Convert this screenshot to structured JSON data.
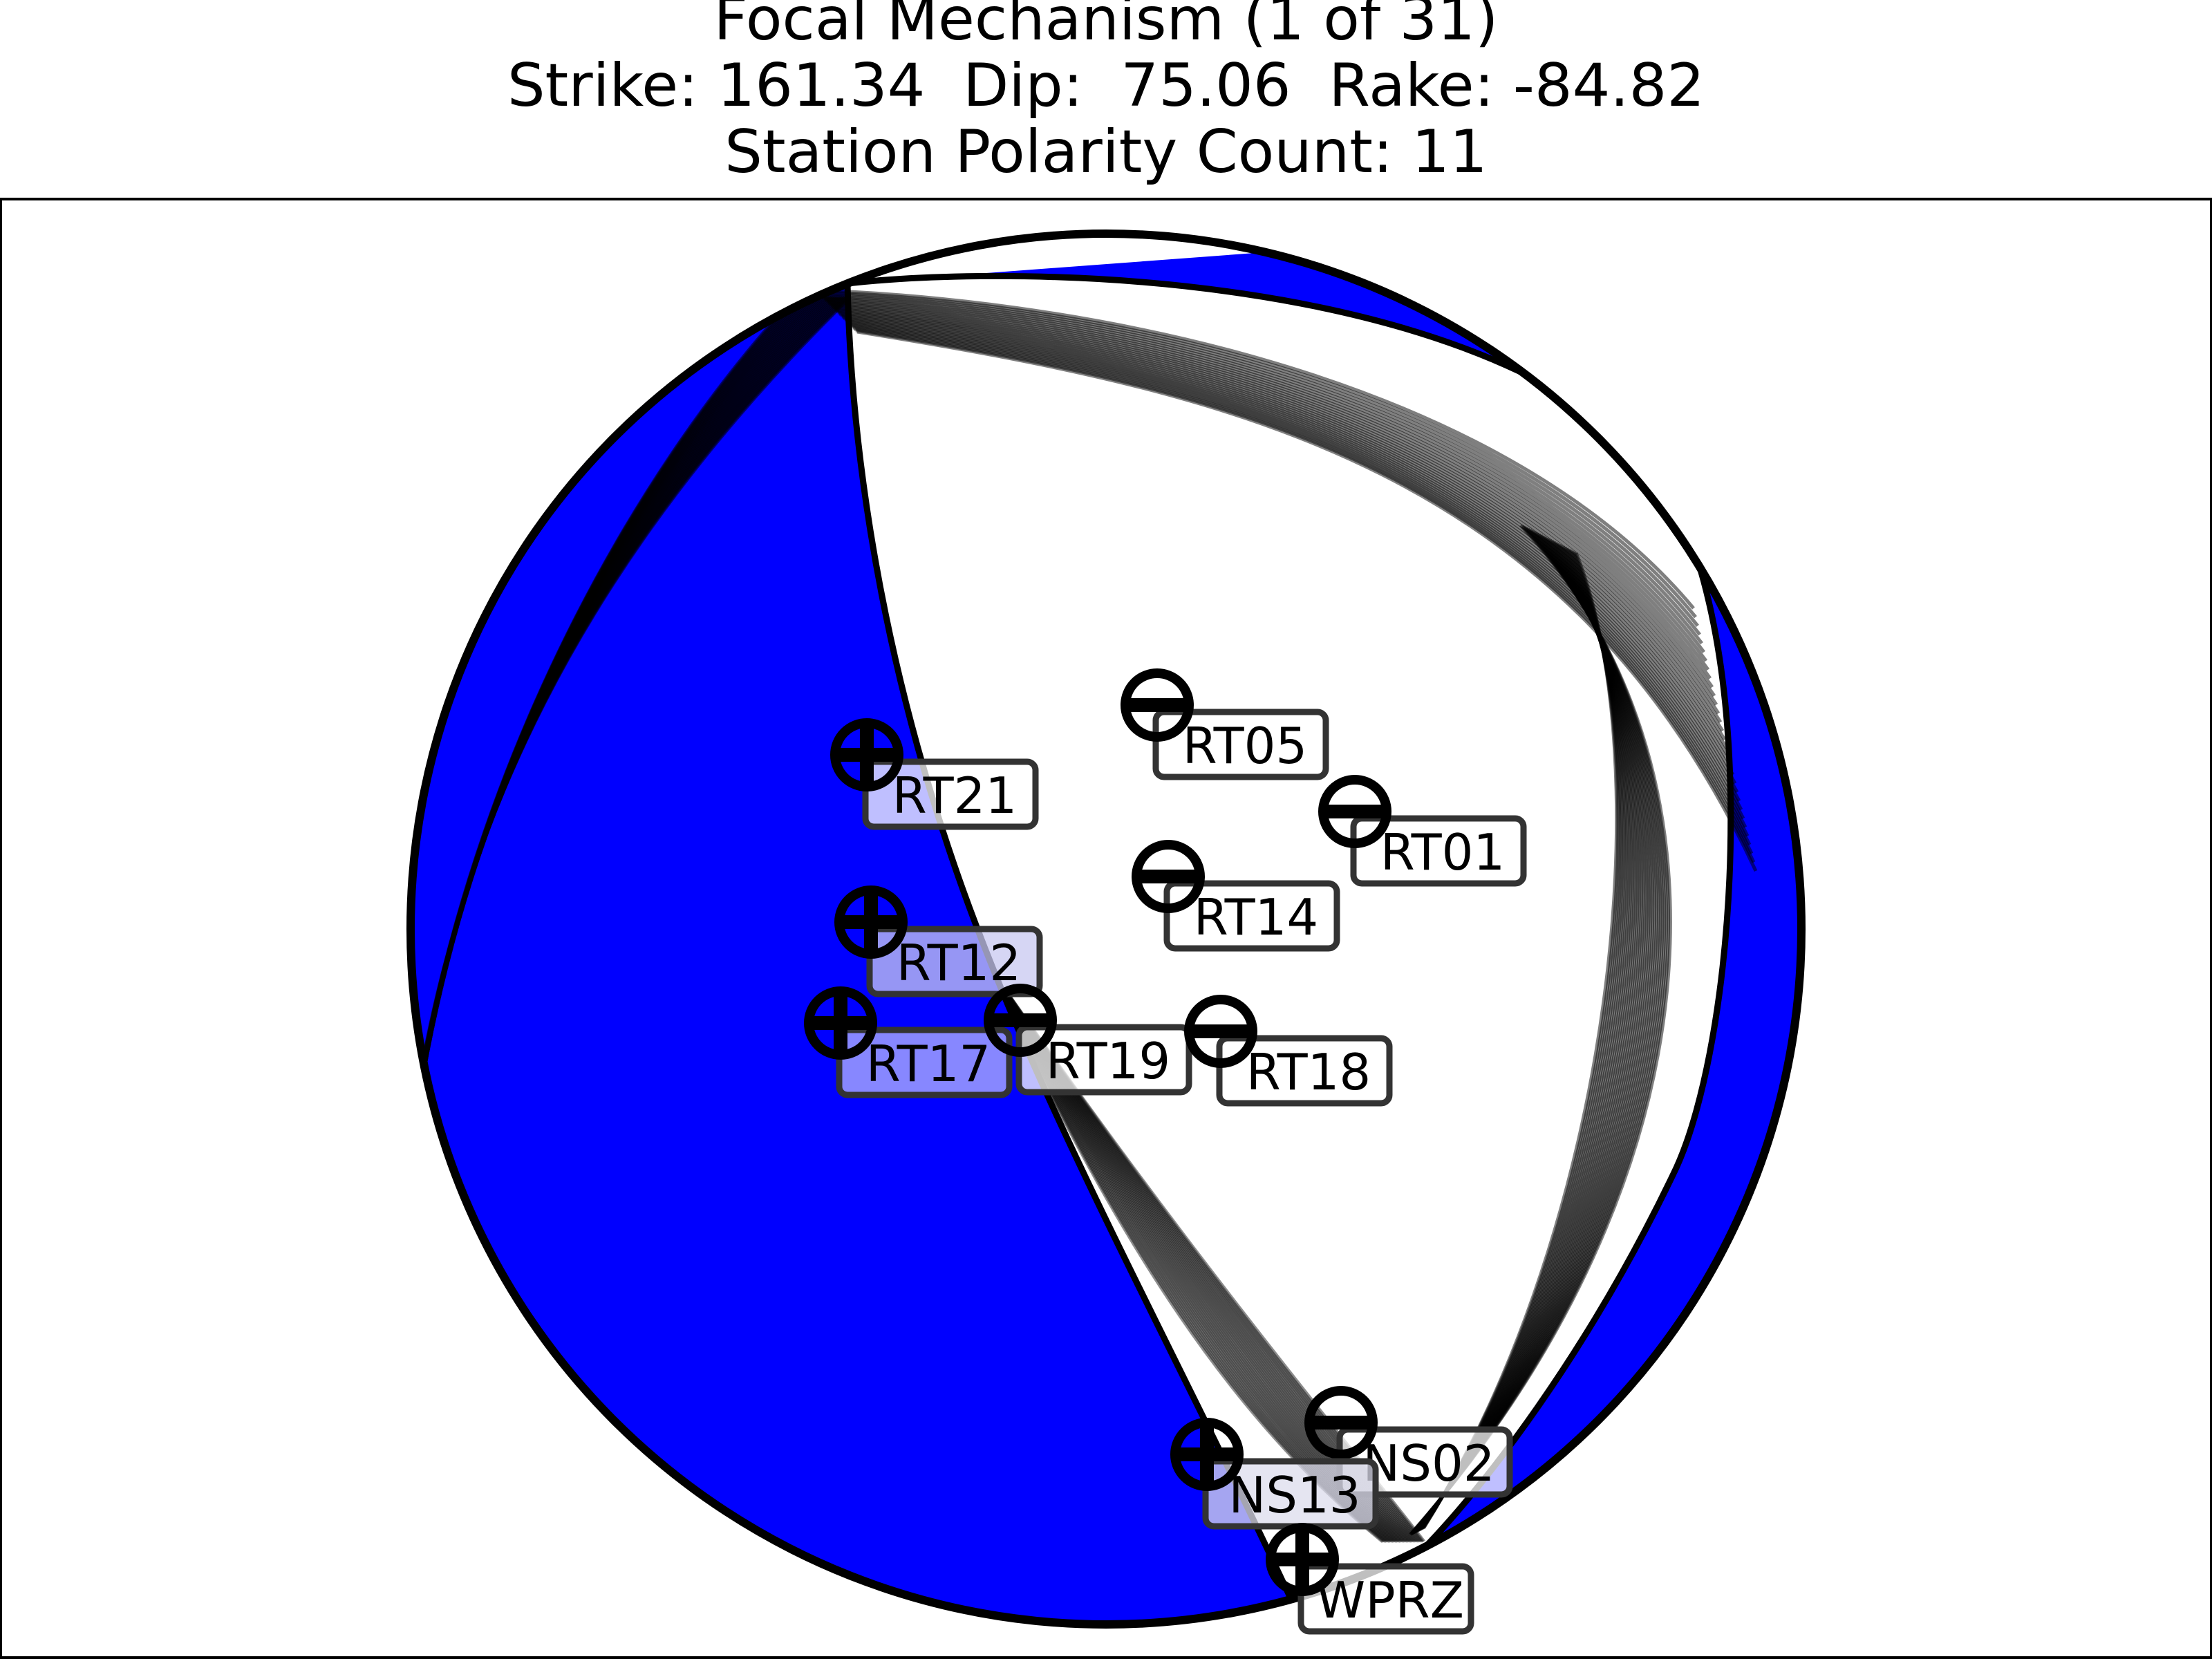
{
  "figure": {
    "title": "Focal Mechanism (1 of 31)",
    "subtitle": "Strike: 161.34  Dip:  75.06  Rake: -84.82",
    "count_line": "Station Polarity Count: 11"
  },
  "mechanism": {
    "strike": 161.34,
    "dip": 75.06,
    "rake": -84.82,
    "compressional_color": "#0000ff",
    "dilatational_color": "#ffffff",
    "nodal_line_color": "#000000",
    "alternate_solution_count": 31
  },
  "stations": [
    {
      "name": "RT05",
      "polarity": "-",
      "box_color": "#ffffff"
    },
    {
      "name": "RT21",
      "polarity": "+",
      "box_color": "#ffffff"
    },
    {
      "name": "RT01",
      "polarity": "-",
      "box_color": "#ffffff"
    },
    {
      "name": "RT14",
      "polarity": "-",
      "box_color": "#ffffff"
    },
    {
      "name": "RT12",
      "polarity": "+",
      "box_color": "#c8c8f0"
    },
    {
      "name": "RT17",
      "polarity": "+",
      "box_color": "#b4b4ff"
    },
    {
      "name": "RT19",
      "polarity": "-",
      "box_color": "#ffffff"
    },
    {
      "name": "RT18",
      "polarity": "-",
      "box_color": "#ffffff"
    },
    {
      "name": "NS02",
      "polarity": "-",
      "box_color": "#ffffff"
    },
    {
      "name": "NS13",
      "polarity": "+",
      "box_color": "#dcdcec"
    },
    {
      "name": "WPRZ",
      "polarity": "+",
      "box_color": "#ffffff"
    }
  ]
}
